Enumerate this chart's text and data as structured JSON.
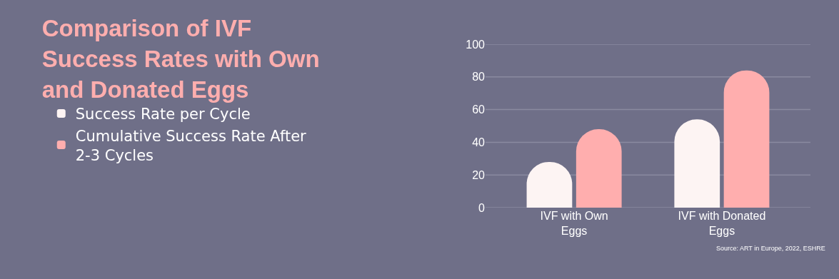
{
  "chart_data": {
    "type": "bar",
    "title": "Comparison of IVF Success Rates with Own and Donated Eggs",
    "categories": [
      "IVF with Own Eggs",
      "IVF with Donated Eggs"
    ],
    "series": [
      {
        "name": "Success Rate per Cycle",
        "color": "#fdf4f3",
        "values": [
          28,
          54
        ]
      },
      {
        "name": "Cumulative Success Rate After 2-3 Cycles",
        "color": "#ffaeae",
        "values": [
          48,
          84
        ]
      }
    ],
    "ylim": [
      0,
      100
    ],
    "yticks": [
      0,
      20,
      40,
      60,
      80,
      100
    ],
    "grid": "y",
    "legend": "left",
    "annotations": [
      "Source: ART in Europe, 2022, ESHRE"
    ]
  }
}
